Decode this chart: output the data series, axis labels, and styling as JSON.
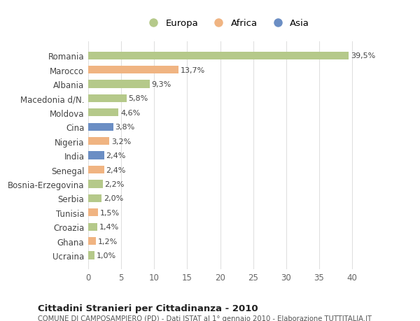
{
  "countries": [
    "Romania",
    "Marocco",
    "Albania",
    "Macedonia d/N.",
    "Moldova",
    "Cina",
    "Nigeria",
    "India",
    "Senegal",
    "Bosnia-Erzegovina",
    "Serbia",
    "Tunisia",
    "Croazia",
    "Ghana",
    "Ucraina"
  ],
  "values": [
    39.5,
    13.7,
    9.3,
    5.8,
    4.6,
    3.8,
    3.2,
    2.4,
    2.4,
    2.2,
    2.0,
    1.5,
    1.4,
    1.2,
    1.0
  ],
  "labels": [
    "39,5%",
    "13,7%",
    "9,3%",
    "5,8%",
    "4,6%",
    "3,8%",
    "3,2%",
    "2,4%",
    "2,4%",
    "2,2%",
    "2,0%",
    "1,5%",
    "1,4%",
    "1,2%",
    "1,0%"
  ],
  "continents": [
    "Europa",
    "Africa",
    "Europa",
    "Europa",
    "Europa",
    "Asia",
    "Africa",
    "Asia",
    "Africa",
    "Europa",
    "Europa",
    "Africa",
    "Europa",
    "Africa",
    "Europa"
  ],
  "colors": {
    "Europa": "#b5c98a",
    "Africa": "#f0b482",
    "Asia": "#6b8ec4"
  },
  "title": "Cittadini Stranieri per Cittadinanza - 2010",
  "subtitle": "COMUNE DI CAMPOSAMPIERO (PD) - Dati ISTAT al 1° gennaio 2010 - Elaborazione TUTTITALIA.IT",
  "xlim": [
    0,
    42
  ],
  "xticks": [
    0,
    5,
    10,
    15,
    20,
    25,
    30,
    35,
    40
  ],
  "background_color": "#ffffff",
  "grid_color": "#e0e0e0",
  "bar_height": 0.55
}
